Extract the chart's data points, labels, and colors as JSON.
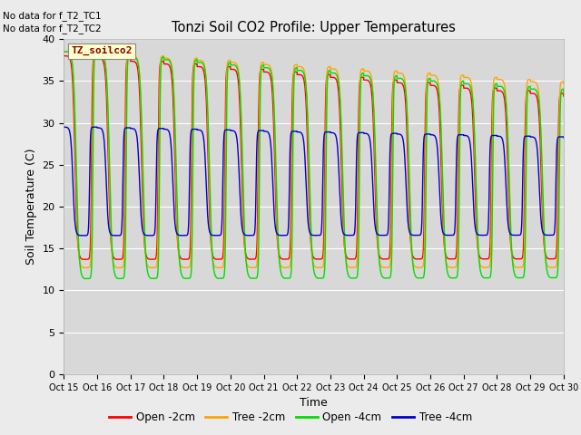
{
  "title": "Tonzi Soil CO2 Profile: Upper Temperatures",
  "ylabel": "Soil Temperature (C)",
  "xlabel": "Time",
  "ylim": [
    0,
    40
  ],
  "num_days": 15,
  "background_color": "#ebebeb",
  "plot_area_color": "#d8d8d8",
  "annotations": [
    "No data for f_T2_TC1",
    "No data for f_T2_TC2"
  ],
  "legend_box_label": "TZ_soilco2",
  "x_tick_labels": [
    "Oct 15",
    "Oct 16",
    "Oct 17",
    "Oct 18",
    "Oct 19",
    "Oct 20",
    "Oct 21",
    "Oct 22",
    "Oct 23",
    "Oct 24",
    "Oct 25",
    "Oct 26",
    "Oct 27",
    "Oct 28",
    "Oct 29",
    "Oct 30"
  ],
  "series": [
    {
      "label": "Open -2cm",
      "color": "#ff0000"
    },
    {
      "label": "Tree -2cm",
      "color": "#ffa500"
    },
    {
      "label": "Open -4cm",
      "color": "#00dd00"
    },
    {
      "label": "Tree -4cm",
      "color": "#0000cc"
    }
  ],
  "grid_color": "#ffffff",
  "figsize": [
    6.4,
    4.8
  ],
  "dpi": 100
}
